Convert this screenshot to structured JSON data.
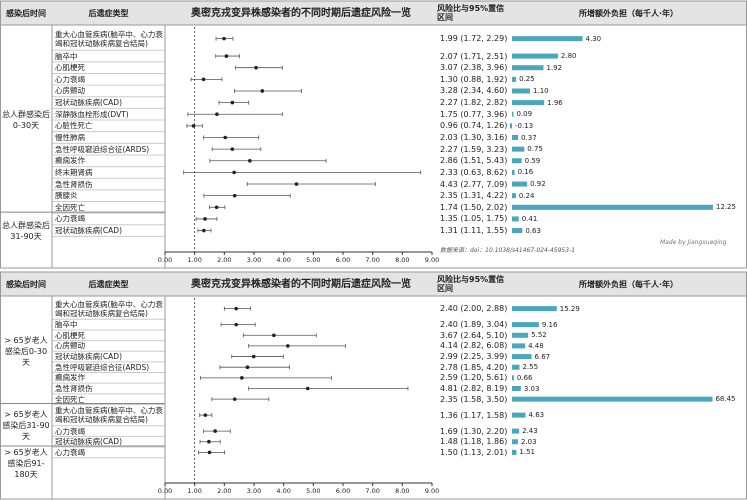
{
  "chart_data": [
    {
      "type": "forest",
      "title": "奥密克戎变异株感染者的不同时期后遗症风险一览",
      "headers": {
        "period": "感染后时间",
        "outcome": "后遗症类型",
        "ratio": "风险比与95%置信区间",
        "burden": "所增额外负担（每千人·年）"
      },
      "xlim": [
        0,
        9
      ],
      "xticks": [
        {
          "value": 0,
          "label": "0.00"
        },
        {
          "value": 1,
          "label": "1.00"
        },
        {
          "value": 2,
          "label": "2.00"
        },
        {
          "value": 3,
          "label": "3.00"
        },
        {
          "value": 4,
          "label": "4.00"
        },
        {
          "value": 5,
          "label": "5.00"
        },
        {
          "value": 6,
          "label": "6.00"
        },
        {
          "value": 7,
          "label": "7.00"
        },
        {
          "value": 8,
          "label": "8.00"
        },
        {
          "value": 9,
          "label": "9.00"
        }
      ],
      "ref_line": 1,
      "bar_color": "#4aa6bd",
      "burden_lim": [
        0,
        12.5
      ],
      "note": "数据来源：doi：10.1038/s41467-024-45953-1",
      "watermark": "Made by Jiangxueqing",
      "groups": [
        {
          "label": "总人群感染后0-30天",
          "categories": [
            "重大心血管疾病(脑卒中、心力衰竭和冠状动脉疾病复合结局)",
            "脑卒中",
            "心肌梗死",
            "心力衰竭",
            "心房颤动",
            "冠状动脉疾病(CAD)",
            "深静脉血栓形成(DVT)",
            "心脏性死亡",
            "慢性肺病",
            "急性呼吸窘迫综合征(ARDS)",
            "癫痫发作",
            "终末期肾病",
            "急性肾损伤",
            "胰腺炎",
            "全因死亡"
          ],
          "values": [
            1.99,
            2.07,
            3.07,
            1.3,
            3.28,
            2.27,
            1.75,
            0.96,
            2.03,
            2.27,
            2.86,
            2.33,
            4.43,
            2.35,
            1.74
          ],
          "lower": [
            1.72,
            1.71,
            2.38,
            0.88,
            2.34,
            1.82,
            0.77,
            0.74,
            1.3,
            1.59,
            1.51,
            0.63,
            2.77,
            1.31,
            1.5
          ],
          "upper": [
            2.29,
            2.51,
            3.96,
            1.92,
            4.6,
            2.82,
            3.96,
            1.26,
            3.16,
            3.23,
            5.43,
            8.62,
            7.09,
            4.22,
            2.02
          ],
          "value_labels": [
            "1.99 (1.72, 2.29)",
            "2.07 (1.71, 2.51)",
            "3.07 (2.38, 3.96)",
            "1.30 (0.88, 1.92)",
            "3.28 (2.34, 4.60)",
            "2.27 (1.82, 2.82)",
            "1.75 (0.77, 3.96)",
            "0.96 (0.74, 1.26)",
            "2.03 (1.30, 3.16)",
            "2.27 (1.59, 3.23)",
            "2.86 (1.51, 5.43)",
            "2.33 (0.63, 8.62)",
            "4.43 (2.77, 7.09)",
            "2.35 (1.31, 4.22)",
            "1.74 (1.50, 2.02)"
          ],
          "burden": [
            4.3,
            2.8,
            1.92,
            0.25,
            1.1,
            1.96,
            0.09,
            -0.13,
            0.37,
            0.75,
            0.59,
            0.16,
            0.92,
            0.24,
            12.25
          ],
          "burden_labels": [
            "4.30",
            "2.80",
            "1.92",
            "0.25",
            "1.10",
            "1.96",
            "0.09",
            "-0.13",
            "0.37",
            "0.75",
            "0.59",
            "0.16",
            "0.92",
            "0.24",
            "12.25"
          ]
        },
        {
          "label": "总人群感染后31-90天",
          "categories": [
            "心力衰竭",
            "冠状动脉疾病(CAD)"
          ],
          "values": [
            1.35,
            1.31
          ],
          "lower": [
            1.05,
            1.11
          ],
          "upper": [
            1.75,
            1.55
          ],
          "value_labels": [
            "1.35 (1.05, 1.75)",
            "1.31 (1.11, 1.55)"
          ],
          "burden": [
            0.41,
            0.63
          ],
          "burden_labels": [
            "0.41",
            "0.63"
          ]
        }
      ]
    },
    {
      "type": "forest",
      "title": "奥密克戎变异株感染者的不同时期后遗症风险一览",
      "headers": {
        "period": "感染后时间",
        "outcome": "后遗症类型",
        "ratio": "风险比与95%置信区间",
        "burden": "所增额外负担（每千人·年）"
      },
      "xlim": [
        0,
        9
      ],
      "xticks": [
        {
          "value": 0,
          "label": "0.00"
        },
        {
          "value": 1,
          "label": "1.00"
        },
        {
          "value": 2,
          "label": "2.00"
        },
        {
          "value": 3,
          "label": "3.00"
        },
        {
          "value": 4,
          "label": "4.00"
        },
        {
          "value": 5,
          "label": "5.00"
        },
        {
          "value": 6,
          "label": "6.00"
        },
        {
          "value": 7,
          "label": "7.00"
        },
        {
          "value": 8,
          "label": "8.00"
        },
        {
          "value": 9,
          "label": "9.00"
        }
      ],
      "ref_line": 1,
      "bar_color": "#4aa6bd",
      "burden_lim": [
        0,
        70
      ],
      "groups": [
        {
          "label": "> 65岁老人感染后0-30天",
          "categories": [
            "重大心血管疾病(脑卒中、心力衰竭和冠状动脉疾病复合结局)",
            "脑卒中",
            "心肌梗死",
            "心房颤动",
            "冠状动脉疾病(CAD)",
            "急性呼吸窘迫综合征(ARDS)",
            "癫痫发作",
            "急性肾损伤",
            "全因死亡"
          ],
          "values": [
            2.4,
            2.4,
            3.67,
            4.14,
            2.99,
            2.78,
            2.59,
            4.81,
            2.35
          ],
          "lower": [
            2.0,
            1.89,
            2.64,
            2.82,
            2.25,
            1.85,
            1.2,
            2.82,
            1.58
          ],
          "upper": [
            2.88,
            3.04,
            5.1,
            6.08,
            3.99,
            4.2,
            5.61,
            8.19,
            3.5
          ],
          "value_labels": [
            "2.40 (2.00, 2.88)",
            "2.40 (1.89, 3.04)",
            "3.67 (2.64, 5.10)",
            "4.14 (2.82, 6.08)",
            "2.99 (2.25, 3.99)",
            "2.78 (1.85, 4.20)",
            "2.59 (1.20, 5.61)",
            "4.81 (2.82, 8.19)",
            "2.35 (1.58, 3.50)"
          ],
          "burden": [
            15.29,
            9.16,
            5.52,
            4.48,
            6.67,
            2.55,
            0.66,
            3.03,
            68.45
          ],
          "burden_labels": [
            "15.29",
            "9.16",
            "5.52",
            "4.48",
            "6.67",
            "2.55",
            "0.66",
            "3.03",
            "68.45"
          ]
        },
        {
          "label": "> 65岁老人感染后31-90天",
          "categories": [
            "重大心血管疾病(脑卒中、心力衰竭和冠状动脉疾病复合结局)",
            "心力衰竭",
            "冠状动脉疾病(CAD)"
          ],
          "values": [
            1.36,
            1.69,
            1.48
          ],
          "lower": [
            1.17,
            1.3,
            1.18
          ],
          "upper": [
            1.58,
            2.2,
            1.86
          ],
          "value_labels": [
            "1.36 (1.17, 1.58)",
            "1.69 (1.30, 2.20)",
            "1.48 (1.18, 1.86)"
          ],
          "burden": [
            4.63,
            2.43,
            2.03
          ],
          "burden_labels": [
            "4.63",
            "2.43",
            "2.03"
          ]
        },
        {
          "label": "> 65岁老人感染后91-180天",
          "categories": [
            "心力衰竭"
          ],
          "values": [
            1.5
          ],
          "lower": [
            1.13
          ],
          "upper": [
            2.01
          ],
          "value_labels": [
            "1.50 (1.13, 2.01)"
          ],
          "burden": [
            1.51
          ],
          "burden_labels": [
            "1.51"
          ]
        }
      ]
    }
  ]
}
